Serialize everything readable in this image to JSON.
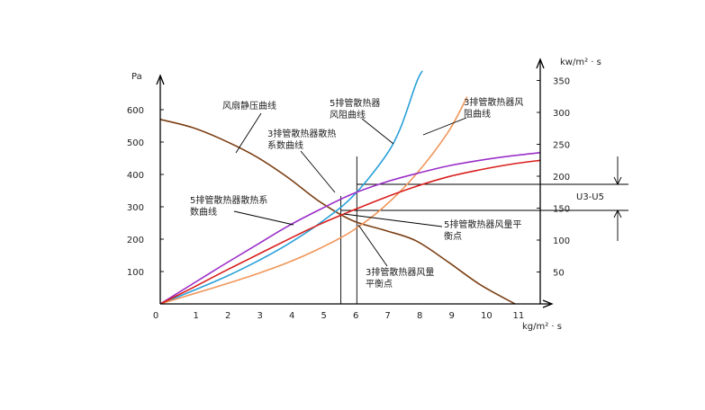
{
  "chart_data": {
    "type": "line",
    "xlabel": "kg/m² · s",
    "ylabel_left": "Pa",
    "ylabel_right": "kw/m² · s",
    "xlim": [
      0,
      12
    ],
    "ylim_left": [
      0,
      700
    ],
    "ylim_right": [
      0,
      350
    ],
    "x_ticks": [
      "0",
      "1",
      "2",
      "3",
      "4",
      "5",
      "6",
      "7",
      "8",
      "9",
      "10",
      "11"
    ],
    "y_left_ticks": [
      "100",
      "200",
      "300",
      "400",
      "500",
      "600"
    ],
    "y_right_ticks": [
      "50",
      "100",
      "150",
      "200",
      "250",
      "300",
      "350"
    ],
    "series": [
      {
        "color": "#7b3f14",
        "axis": "left",
        "points": [
          [
            0,
            570
          ],
          [
            1,
            545
          ],
          [
            2,
            505
          ],
          [
            3,
            455
          ],
          [
            4,
            390
          ],
          [
            5,
            315
          ],
          [
            6,
            258
          ],
          [
            7,
            228
          ],
          [
            8,
            195
          ],
          [
            9,
            130
          ],
          [
            10,
            60
          ],
          [
            11.1,
            0
          ]
        ]
      },
      {
        "color": "#2aa0d8",
        "axis": "left",
        "points": [
          [
            0,
            0
          ],
          [
            1,
            40
          ],
          [
            2,
            82
          ],
          [
            3,
            130
          ],
          [
            4,
            185
          ],
          [
            5,
            250
          ],
          [
            6,
            330
          ],
          [
            7,
            450
          ],
          [
            7.5,
            540
          ],
          [
            8,
            680
          ],
          [
            8.2,
            720
          ]
        ]
      },
      {
        "color": "#f0965a",
        "axis": "left",
        "points": [
          [
            0,
            0
          ],
          [
            1,
            30
          ],
          [
            2,
            60
          ],
          [
            3,
            92
          ],
          [
            4,
            128
          ],
          [
            5,
            172
          ],
          [
            6,
            225
          ],
          [
            7,
            300
          ],
          [
            8,
            400
          ],
          [
            9,
            530
          ],
          [
            9.6,
            640
          ]
        ]
      },
      {
        "color": "#9a2fc8",
        "axis": "right",
        "points": [
          [
            0,
            0
          ],
          [
            1,
            31
          ],
          [
            2,
            62
          ],
          [
            3,
            92
          ],
          [
            4,
            122
          ],
          [
            5,
            148
          ],
          [
            6,
            172
          ],
          [
            7,
            190
          ],
          [
            8,
            204
          ],
          [
            9,
            216
          ],
          [
            10,
            225
          ],
          [
            11,
            232
          ],
          [
            11.9,
            237
          ]
        ]
      },
      {
        "color": "#d8201e",
        "axis": "right",
        "points": [
          [
            0,
            0
          ],
          [
            1,
            25
          ],
          [
            2,
            51
          ],
          [
            3,
            76
          ],
          [
            4,
            101
          ],
          [
            5,
            125
          ],
          [
            6,
            146
          ],
          [
            7,
            166
          ],
          [
            8,
            184
          ],
          [
            9,
            199
          ],
          [
            10,
            210
          ],
          [
            11,
            219
          ],
          [
            11.9,
            225
          ]
        ]
      }
    ],
    "annotations": [
      "风扇静压曲线",
      "5排管散热器\n风阻曲线",
      "3排管散热器风\n阻曲线",
      "3排管散热器散热\n系数曲线",
      "5排管散热器散热系\n数曲线",
      "5排管散热器风量平\n衡点",
      "3排管散热器风量\n平衡点"
    ],
    "side_label": "U3-U5",
    "balance_x": [
      5.65,
      6.15
    ]
  }
}
